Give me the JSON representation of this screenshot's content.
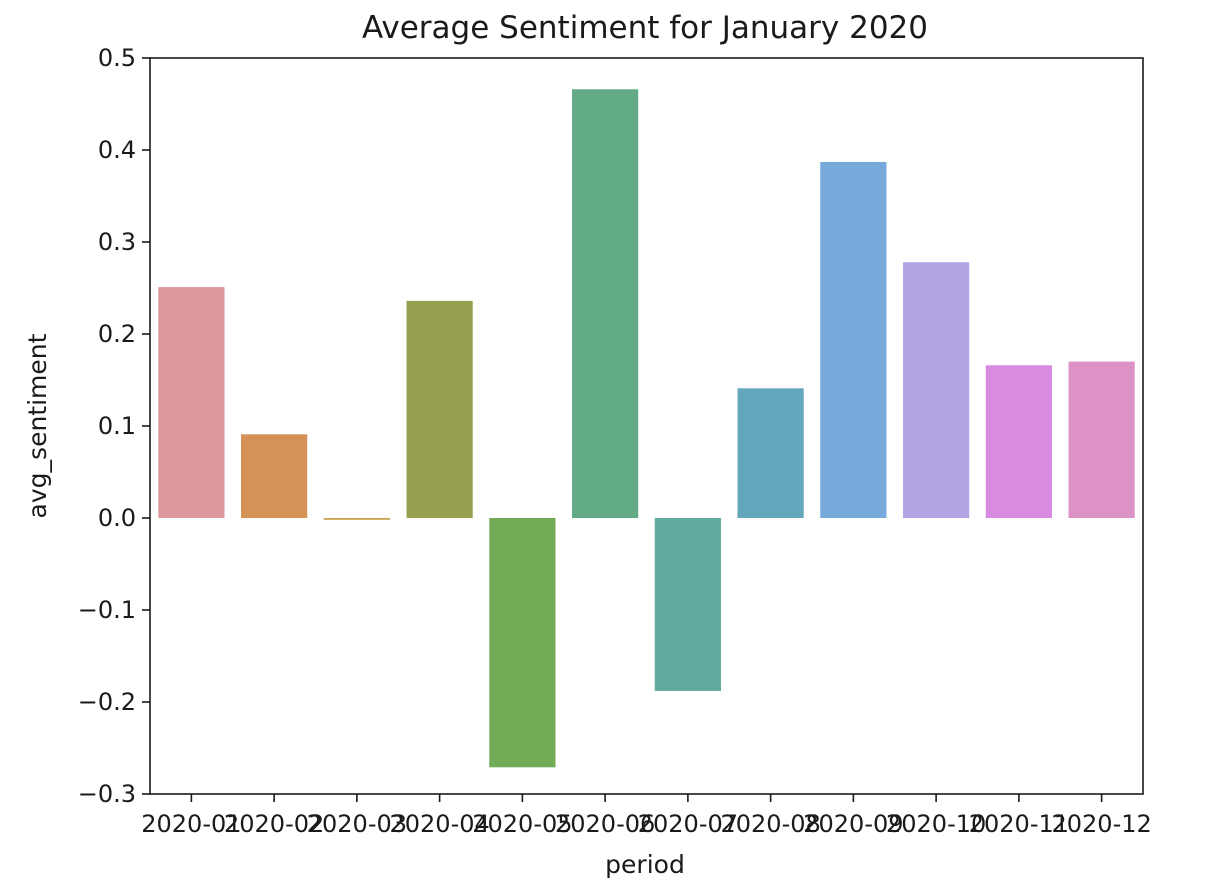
{
  "chart_data": {
    "type": "bar",
    "title": "Average Sentiment for January 2020",
    "xlabel": "period",
    "ylabel": "avg_sentiment",
    "categories": [
      "2020-01",
      "2020-02",
      "2020-03",
      "2020-04",
      "2020-05",
      "2020-06",
      "2020-07",
      "2020-08",
      "2020-09",
      "2020-10",
      "2020-11",
      "2020-12"
    ],
    "values": [
      0.251,
      0.091,
      -0.002,
      0.236,
      -0.271,
      0.466,
      -0.188,
      0.141,
      0.387,
      0.278,
      0.166,
      0.17
    ],
    "colors": [
      "#dd989f",
      "#d59257",
      "#c8a354",
      "#97a04f",
      "#72ab55",
      "#62ab86",
      "#62a99e",
      "#64a6bb",
      "#77aadb",
      "#b2a3e3",
      "#d98ae1",
      "#dc92c4"
    ],
    "ylim": [
      -0.3,
      0.5
    ],
    "yticks": [
      -0.3,
      -0.2,
      -0.1,
      0.0,
      0.1,
      0.2,
      0.3,
      0.4,
      0.5
    ],
    "ytick_labels": [
      "−0.3",
      "−0.2",
      "−0.1",
      "0.0",
      "0.1",
      "0.2",
      "0.3",
      "0.4",
      "0.5"
    ],
    "grid": false,
    "legend": false
  }
}
